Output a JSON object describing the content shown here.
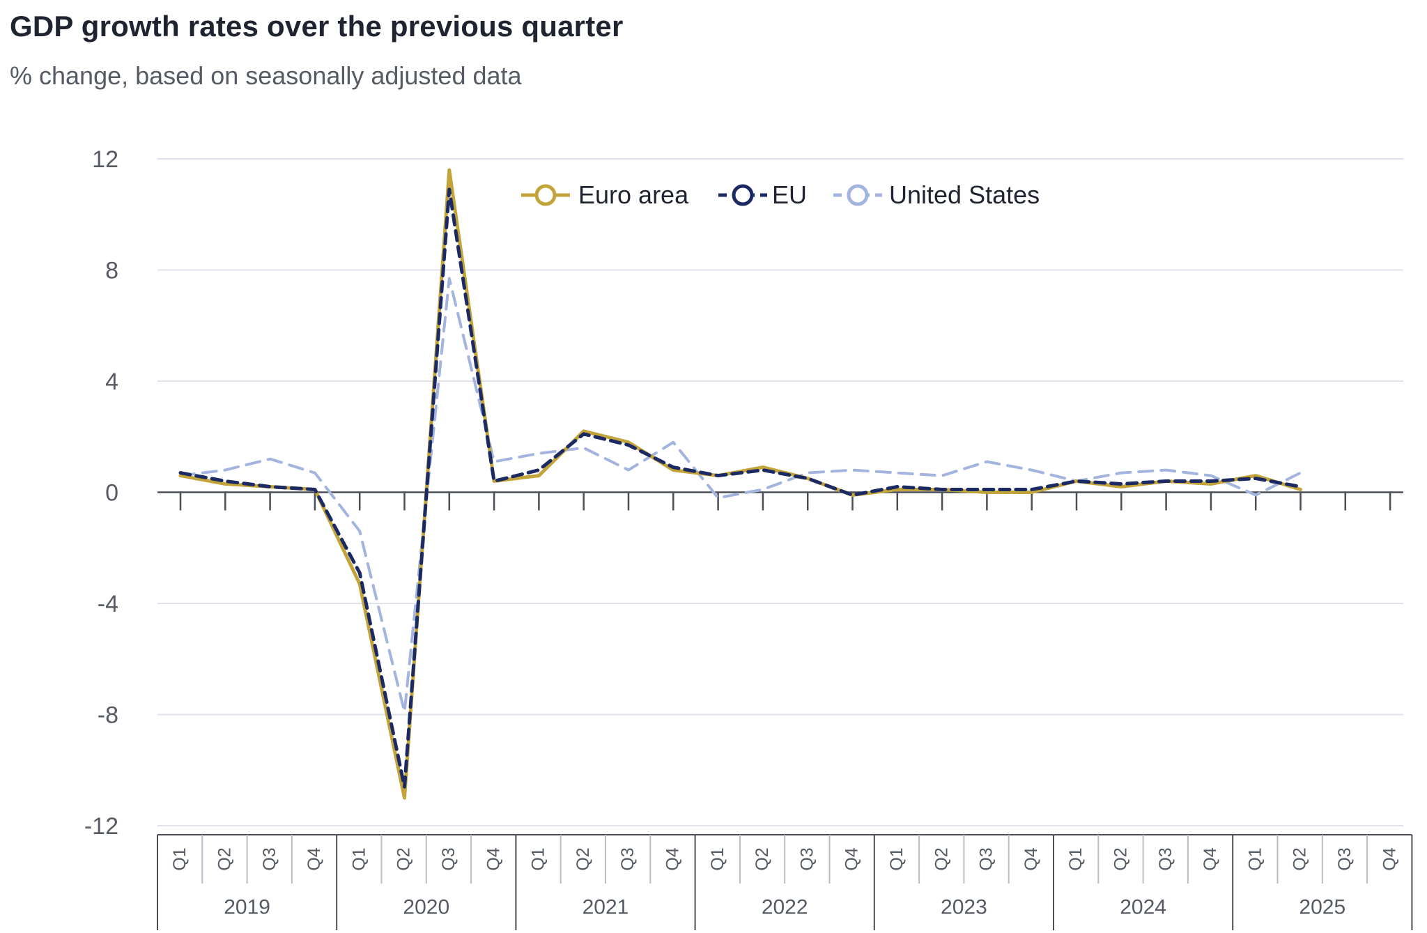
{
  "chart_data": {
    "type": "line",
    "title": "GDP growth rates over the previous quarter",
    "subtitle": "% change, based on seasonally adjusted data",
    "xlabel": "",
    "ylabel": "",
    "ylim": [
      -12,
      12
    ],
    "yticks": [
      12,
      8,
      4,
      0,
      -4,
      -8,
      -12
    ],
    "grid": true,
    "legend": "top-center",
    "years": [
      "2019",
      "2020",
      "2021",
      "2022",
      "2023",
      "2024",
      "2025"
    ],
    "quarters": [
      "Q1",
      "Q2",
      "Q3",
      "Q4"
    ],
    "categories": [
      "2019-Q1",
      "2019-Q2",
      "2019-Q3",
      "2019-Q4",
      "2020-Q1",
      "2020-Q2",
      "2020-Q3",
      "2020-Q4",
      "2021-Q1",
      "2021-Q2",
      "2021-Q3",
      "2021-Q4",
      "2022-Q1",
      "2022-Q2",
      "2022-Q3",
      "2022-Q4",
      "2023-Q1",
      "2023-Q2",
      "2023-Q3",
      "2023-Q4",
      "2024-Q1",
      "2024-Q2",
      "2024-Q3",
      "2024-Q4",
      "2025-Q1",
      "2025-Q2",
      "2025-Q3",
      "2025-Q4"
    ],
    "series": [
      {
        "name": "Euro area",
        "color": "#c2a43b",
        "dash": "solid",
        "values": [
          0.6,
          0.3,
          0.2,
          0.1,
          -3.3,
          -11.0,
          11.6,
          0.4,
          0.6,
          2.2,
          1.8,
          0.8,
          0.6,
          0.9,
          0.5,
          -0.1,
          0.1,
          0.1,
          0.0,
          0.0,
          0.4,
          0.2,
          0.4,
          0.3,
          0.6,
          0.1,
          null,
          null
        ]
      },
      {
        "name": "EU",
        "color": "#1b2a63",
        "dash": "dashed",
        "values": [
          0.7,
          0.4,
          0.2,
          0.1,
          -2.9,
          -10.6,
          10.9,
          0.4,
          0.8,
          2.1,
          1.7,
          0.9,
          0.6,
          0.8,
          0.5,
          -0.1,
          0.2,
          0.1,
          0.1,
          0.1,
          0.4,
          0.3,
          0.4,
          0.4,
          0.5,
          0.2,
          null,
          null
        ]
      },
      {
        "name": "United States",
        "color": "#a3b4de",
        "dash": "dashed",
        "values": [
          0.6,
          0.8,
          1.2,
          0.7,
          -1.4,
          -7.9,
          7.7,
          1.1,
          1.4,
          1.6,
          0.8,
          1.8,
          -0.2,
          0.1,
          0.7,
          0.8,
          0.7,
          0.6,
          1.1,
          0.8,
          0.4,
          0.7,
          0.8,
          0.6,
          -0.1,
          0.7,
          null,
          null
        ]
      }
    ]
  }
}
